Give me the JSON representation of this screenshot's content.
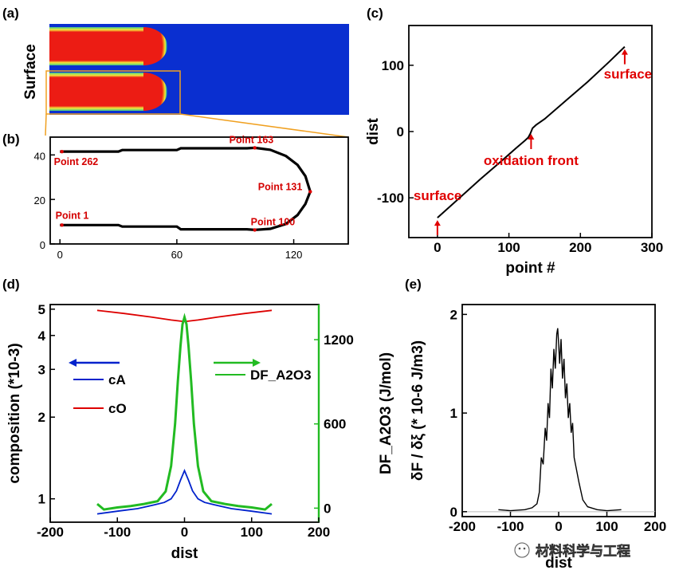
{
  "panel_labels": [
    "(a)",
    "(b)",
    "(c)",
    "(d)",
    "(e)"
  ],
  "panel_a": {
    "ylabel": "Surface",
    "colors": {
      "background": "#0a2fd0",
      "particle": "#ec1c14",
      "edge": "#f3e83a"
    }
  },
  "watermark": "材料科学与工程",
  "chart_data": [
    {
      "id": "b",
      "type": "scatter",
      "title": "",
      "xlabel": "",
      "ylabel": "",
      "xlim": [
        -5,
        148
      ],
      "ylim": [
        0,
        48
      ],
      "x_ticks": [
        "0",
        "60",
        "120"
      ],
      "x_tick_values": [
        0,
        60,
        120
      ],
      "y_ticks": [
        "0",
        "20",
        "40"
      ],
      "y_tick_values": [
        0,
        20,
        40
      ],
      "boundary_lower": [
        [
          0,
          8.5
        ],
        [
          30,
          8.5
        ],
        [
          32,
          7.8
        ],
        [
          60,
          7.8
        ],
        [
          62,
          6.6
        ],
        [
          96,
          6.6
        ],
        [
          100,
          6.3
        ],
        [
          108,
          6.8
        ],
        [
          116,
          9.0
        ],
        [
          122,
          13.0
        ],
        [
          126,
          18.0
        ],
        [
          128.5,
          23.5
        ]
      ],
      "boundary_upper": [
        [
          0,
          41.5
        ],
        [
          30,
          41.5
        ],
        [
          32,
          42.2
        ],
        [
          60,
          42.2
        ],
        [
          62,
          43.0
        ],
        [
          96,
          43.0
        ],
        [
          100,
          43.2
        ],
        [
          108,
          42.3
        ],
        [
          116,
          39.5
        ],
        [
          122,
          35.5
        ],
        [
          126,
          30.5
        ],
        [
          128.5,
          23.5
        ]
      ],
      "points": [
        {
          "label": "Point 1",
          "x": 1,
          "y": 8.5
        },
        {
          "label": "Point 100",
          "x": 100,
          "y": 6.3
        },
        {
          "label": "Point 131",
          "x": 128.5,
          "y": 23.5
        },
        {
          "label": "Point 163",
          "x": 100,
          "y": 43.2
        },
        {
          "label": "Point 262",
          "x": 1,
          "y": 41.5
        }
      ]
    },
    {
      "id": "c",
      "type": "line",
      "title": "",
      "xlabel": "point #",
      "ylabel": "dist",
      "xlim": [
        -40,
        300
      ],
      "ylim": [
        -160,
        160
      ],
      "x_ticks": [
        "0",
        "100",
        "200",
        "300"
      ],
      "x_tick_values": [
        0,
        100,
        200,
        300
      ],
      "y_ticks": [
        "-100",
        "0",
        "100"
      ],
      "y_tick_values": [
        -100,
        0,
        100
      ],
      "series": [
        {
          "name": "dist",
          "x": [
            0,
            30,
            60,
            90,
            110,
            122,
            127,
            130,
            133,
            138,
            150,
            180,
            210,
            240,
            262
          ],
          "y": [
            -130,
            -101,
            -72,
            -44,
            -25,
            -14,
            -9,
            -3,
            5,
            10,
            19,
            47,
            75,
            105,
            128
          ]
        }
      ],
      "annotations": [
        {
          "text": "surface",
          "x": 0,
          "y": -130
        },
        {
          "text": "oxidation front",
          "x": 131,
          "y": 0
        },
        {
          "text": "surface",
          "x": 262,
          "y": 128
        }
      ]
    },
    {
      "id": "d",
      "type": "line",
      "title": "",
      "xlabel": "dist",
      "ylabel": "composition (*10-3)",
      "ylabel_right": "DF_A2O3 (J/mol)",
      "xlim": [
        -200,
        200
      ],
      "ylim": [
        0.82,
        5.2
      ],
      "ylim_right": [
        -100,
        1450
      ],
      "yscale": "log",
      "x_ticks": [
        "-200",
        "-100",
        "0",
        "100",
        "200"
      ],
      "x_tick_values": [
        -200,
        -100,
        0,
        100,
        200
      ],
      "y_ticks": [
        "1",
        "2",
        "3",
        "4",
        "5"
      ],
      "y_tick_values": [
        1,
        2,
        3,
        4,
        5
      ],
      "y_ticks_right": [
        "0",
        "600",
        "1200"
      ],
      "y_tick_values_right": [
        0,
        600,
        1200
      ],
      "legend": [
        "cA",
        "cO",
        "DF_A2O3"
      ],
      "series": [
        {
          "name": "cA",
          "color": "#0022cc",
          "axis": "left",
          "x": [
            -130,
            -100,
            -70,
            -45,
            -30,
            -20,
            -12,
            -6,
            0,
            6,
            12,
            20,
            30,
            45,
            70,
            100,
            130
          ],
          "y": [
            0.88,
            0.9,
            0.92,
            0.95,
            0.97,
            1.0,
            1.07,
            1.17,
            1.27,
            1.17,
            1.07,
            1.0,
            0.97,
            0.95,
            0.92,
            0.9,
            0.88
          ]
        },
        {
          "name": "cO",
          "color": "#dd0000",
          "axis": "left",
          "x": [
            -130,
            -90,
            -50,
            -20,
            0,
            20,
            50,
            90,
            130
          ],
          "y": [
            4.95,
            4.82,
            4.68,
            4.56,
            4.5,
            4.56,
            4.68,
            4.82,
            4.95
          ]
        },
        {
          "name": "DF_A2O3",
          "color": "#22bb22",
          "axis": "right",
          "x": [
            -130,
            -120,
            -100,
            -80,
            -60,
            -40,
            -28,
            -20,
            -14,
            -10,
            -6,
            -3,
            0,
            3,
            6,
            10,
            14,
            20,
            28,
            40,
            60,
            80,
            100,
            120,
            130
          ],
          "y": [
            30,
            -10,
            5,
            15,
            30,
            50,
            120,
            300,
            600,
            900,
            1150,
            1310,
            1360,
            1310,
            1150,
            900,
            600,
            300,
            120,
            50,
            30,
            15,
            5,
            -10,
            30
          ]
        }
      ]
    },
    {
      "id": "e",
      "type": "line",
      "title": "",
      "xlabel": "dist",
      "ylabel": "δF / δξ (* 10-6 J/m3)",
      "xlim": [
        -200,
        200
      ],
      "ylim": [
        -0.05,
        2.1
      ],
      "x_ticks": [
        "-200",
        "-100",
        "0",
        "100",
        "200"
      ],
      "x_tick_values": [
        -200,
        -100,
        0,
        100,
        200
      ],
      "y_ticks": [
        "0",
        "1",
        "2"
      ],
      "y_tick_values": [
        0,
        1,
        2
      ],
      "series": [
        {
          "name": "δF/δξ",
          "color": "#000000",
          "x": [
            -125,
            -100,
            -70,
            -55,
            -45,
            -40,
            -36,
            -32,
            -28,
            -25,
            -22,
            -19,
            -16,
            -13,
            -10,
            -7,
            -4,
            -2,
            0,
            2,
            5,
            8,
            11,
            14,
            17,
            20,
            23,
            26,
            29,
            32,
            36,
            42,
            50,
            60,
            80,
            100,
            130
          ],
          "y": [
            0.02,
            0.01,
            0.02,
            0.04,
            0.08,
            0.2,
            0.55,
            0.48,
            0.85,
            0.72,
            1.1,
            0.95,
            1.45,
            1.25,
            1.65,
            1.45,
            1.8,
            1.86,
            1.7,
            1.5,
            1.75,
            1.35,
            1.55,
            1.15,
            1.3,
            0.95,
            1.1,
            0.8,
            0.9,
            0.55,
            0.45,
            0.3,
            0.12,
            0.05,
            0.02,
            0.01,
            0.02
          ]
        }
      ]
    }
  ]
}
